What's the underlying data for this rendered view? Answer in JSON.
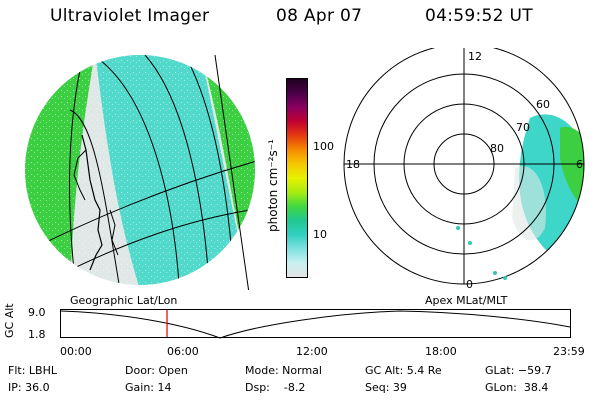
{
  "header": {
    "title": "Ultraviolet Imager",
    "date": "08 Apr 07",
    "time": "04:59:52 UT"
  },
  "colorbar": {
    "label": "photon cm⁻²s⁻¹",
    "ticks": [
      "100",
      "10"
    ],
    "stops": [
      "#200020",
      "#4a0048",
      "#8a0060",
      "#c00030",
      "#e63a10",
      "#f58a00",
      "#f5c800",
      "#e8f000",
      "#a8ec10",
      "#40d840",
      "#20c890",
      "#30d0c0",
      "#80e0e0",
      "#c8f0f0",
      "#e4e4e4"
    ]
  },
  "left_panel": {
    "caption": "Geographic Lat/Lon"
  },
  "right_panel": {
    "caption": "Apex MLat/MLT",
    "mlt_labels": {
      "top": "12",
      "left": "18",
      "right": "6",
      "bottom": "0"
    },
    "lat_labels": [
      "60",
      "70",
      "80"
    ]
  },
  "timeline": {
    "ylabel": "GC Alt",
    "y_max_label": "9.0",
    "y_min_label": "1.8",
    "ticks": [
      "00:00",
      "06:00",
      "12:00",
      "18:00",
      "23:59"
    ],
    "current_time_fraction": 0.2083,
    "current_marker_color": "#dd0000"
  },
  "status": {
    "flt": "Flt: LBHL",
    "ip": "IP: 36.0",
    "door": "Door: Open",
    "gain": "Gain: 14",
    "mode": "Mode: Normal",
    "dsp": "Dsp:    -8.2",
    "gcalt": "GC Alt: 5.4 Re",
    "seq": "Seq: 39",
    "glat": "GLat: −59.7",
    "glon": "GLon:  38.4"
  },
  "colors": {
    "green": "#40d040",
    "cyan": "#40d8c8",
    "pale": "#e0e8e8"
  }
}
